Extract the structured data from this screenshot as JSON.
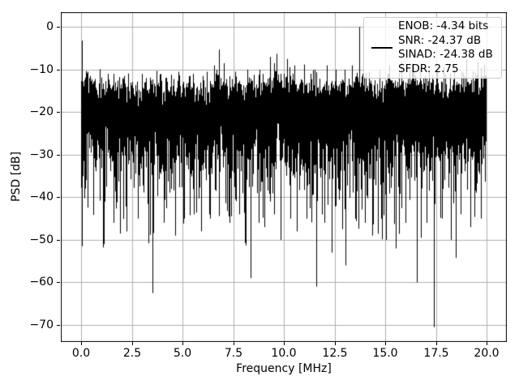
{
  "figure": {
    "background": "#ffffff"
  },
  "chart_data": {
    "type": "line",
    "title": "",
    "xlabel": "Frequency [MHz]",
    "ylabel": "PSD [dB]",
    "xlim": [
      -1,
      21
    ],
    "ylim": [
      -74,
      3.5
    ],
    "xticks": [
      0,
      2.5,
      5,
      7.5,
      10,
      12.5,
      15,
      17.5,
      20
    ],
    "xtick_labels": [
      "0.0",
      "2.5",
      "5.0",
      "7.5",
      "10.0",
      "12.5",
      "15.0",
      "17.5",
      "20.0"
    ],
    "yticks": [
      0,
      -10,
      -20,
      -30,
      -40,
      -50,
      -60,
      -70
    ],
    "ytick_labels": [
      "0",
      "−10",
      "−20",
      "−30",
      "−40",
      "−50",
      "−60",
      "−70"
    ],
    "grid": true,
    "grid_color": "#b0b0b0",
    "line_color": "#000000",
    "background_color": "#ffffff",
    "legend": {
      "position": "upper right",
      "entries": [
        {
          "color": "#000000",
          "label_lines": [
            "ENOB: -4.34 bits",
            "SNR: -24.37 dB",
            "SINAD: -24.38 dB",
            "SFDR: 2.75"
          ]
        }
      ]
    },
    "series_model": {
      "description": "Dense noise-like PSD trace from 0 to 20 MHz; per-column min/max envelope of a noisy spectrum",
      "f_start": 0,
      "f_stop": 20,
      "columns": 500,
      "bins_per_column": 16,
      "noise_floor_db": -19,
      "seed": 7,
      "floor_bumps": [
        {
          "f": 0.3,
          "width": 0.3,
          "gain": 1.5
        },
        {
          "f": 6.8,
          "width": 0.4,
          "gain": 2.0
        },
        {
          "f": 9.8,
          "width": 0.8,
          "gain": 2.0
        },
        {
          "f": 13.7,
          "width": 0.25,
          "gain": 1.5
        },
        {
          "f": 16.2,
          "width": 0.9,
          "gain": 1.3
        },
        {
          "f": 19.5,
          "width": 0.7,
          "gain": 1.5
        }
      ],
      "peaks": [
        [
          0.04,
          -3.2
        ],
        [
          0.3,
          -10.5
        ],
        [
          1.3,
          -11
        ],
        [
          2.1,
          -11.5
        ],
        [
          3.0,
          -11
        ],
        [
          3.9,
          -11
        ],
        [
          4.8,
          -10.5
        ],
        [
          5.5,
          -11
        ],
        [
          6.2,
          -10.5
        ],
        [
          6.55,
          -9
        ],
        [
          6.8,
          -5.3
        ],
        [
          7.05,
          -8.5
        ],
        [
          7.6,
          -10.5
        ],
        [
          8.2,
          -10
        ],
        [
          8.8,
          -10
        ],
        [
          9.3,
          -7
        ],
        [
          9.5,
          -8.5
        ],
        [
          9.65,
          -6.3
        ],
        [
          10.15,
          -7.5
        ],
        [
          10.5,
          -9
        ],
        [
          11.0,
          -8.8
        ],
        [
          11.5,
          -10
        ],
        [
          12.1,
          -9
        ],
        [
          12.55,
          -10
        ],
        [
          13.0,
          -10
        ],
        [
          13.35,
          -9
        ],
        [
          13.7,
          0.0
        ],
        [
          14.2,
          -10.5
        ],
        [
          14.7,
          -10
        ],
        [
          15.2,
          -10
        ],
        [
          15.8,
          -8.3
        ],
        [
          16.3,
          -8.5
        ],
        [
          16.7,
          -9.5
        ],
        [
          17.15,
          -10
        ],
        [
          17.9,
          -9.3
        ],
        [
          18.4,
          -10
        ],
        [
          19.0,
          -7.6
        ],
        [
          19.55,
          -8.2
        ],
        [
          19.9,
          -8.8
        ]
      ],
      "dips": [
        [
          0.04,
          -51.5
        ],
        [
          1.1,
          -51
        ],
        [
          1.6,
          -46
        ],
        [
          2.25,
          -48
        ],
        [
          2.8,
          -45
        ],
        [
          3.5,
          -62.5
        ],
        [
          4.1,
          -46
        ],
        [
          4.65,
          -49
        ],
        [
          5.1,
          -45
        ],
        [
          5.55,
          -44
        ],
        [
          5.9,
          -48
        ],
        [
          6.35,
          -45
        ],
        [
          7.3,
          -46
        ],
        [
          7.8,
          -44
        ],
        [
          8.35,
          -59
        ],
        [
          8.75,
          -46
        ],
        [
          9.05,
          -47
        ],
        [
          9.5,
          -44
        ],
        [
          9.85,
          -50
        ],
        [
          10.3,
          -45
        ],
        [
          10.65,
          -48
        ],
        [
          11.1,
          -45
        ],
        [
          11.6,
          -61
        ],
        [
          12.0,
          -46
        ],
        [
          12.35,
          -53
        ],
        [
          13.05,
          -56
        ],
        [
          13.5,
          -45
        ],
        [
          14.0,
          -46
        ],
        [
          14.35,
          -49
        ],
        [
          14.8,
          -45
        ],
        [
          15.05,
          -50
        ],
        [
          15.5,
          -52
        ],
        [
          16.0,
          -46
        ],
        [
          16.55,
          -60
        ],
        [
          17.05,
          -46
        ],
        [
          17.4,
          -70.5
        ],
        [
          17.8,
          -45
        ],
        [
          18.25,
          -50
        ],
        [
          18.7,
          -44
        ],
        [
          19.2,
          -47
        ],
        [
          19.7,
          -45
        ]
      ]
    }
  }
}
